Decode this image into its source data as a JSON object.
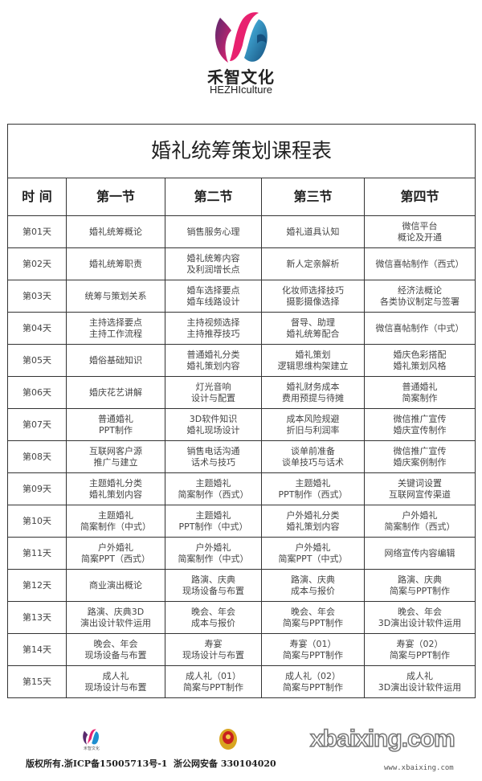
{
  "brand": {
    "name_cn": "禾智文化",
    "name_en": "HEZHIculture"
  },
  "table": {
    "title": "婚礼统筹策划课程表",
    "headers": [
      "时 间",
      "第一节",
      "第二节",
      "第三节",
      "第四节"
    ],
    "rows": [
      {
        "day": "第01天",
        "cells": [
          [
            "婚礼统筹概论"
          ],
          [
            "销售服务心理"
          ],
          [
            "婚礼道具认知"
          ],
          [
            "微信平台",
            "概论及开通"
          ]
        ]
      },
      {
        "day": "第02天",
        "cells": [
          [
            "婚礼统筹职责"
          ],
          [
            "婚礼统筹内容",
            "及利润增长点"
          ],
          [
            "新人定亲解析"
          ],
          [
            "微信喜帖制作（西式）"
          ]
        ]
      },
      {
        "day": "第03天",
        "cells": [
          [
            "统筹与策划关系"
          ],
          [
            "婚车选择要点",
            "婚车线路设计"
          ],
          [
            "化妆师选择技巧",
            "摄影摄像选择"
          ],
          [
            "经济法概论",
            "各类协议制定与签署"
          ]
        ]
      },
      {
        "day": "第04天",
        "cells": [
          [
            "主持选择要点",
            "主持工作流程"
          ],
          [
            "主持视频选择",
            "主持推荐技巧"
          ],
          [
            "督导、助理",
            "婚礼统筹配合"
          ],
          [
            "微信喜帖制作（中式）"
          ]
        ]
      },
      {
        "day": "第05天",
        "cells": [
          [
            "婚俗基础知识"
          ],
          [
            "普通婚礼分类",
            "婚礼策划内容"
          ],
          [
            "婚礼策划",
            "逻辑思维构架建立"
          ],
          [
            "婚庆色彩搭配",
            "婚礼策划风格"
          ]
        ]
      },
      {
        "day": "第06天",
        "cells": [
          [
            "婚庆花艺讲解"
          ],
          [
            "灯光音响",
            "设计与配置"
          ],
          [
            "婚礼财务成本",
            "费用预提与待摊"
          ],
          [
            "普通婚礼",
            "简案制作"
          ]
        ]
      },
      {
        "day": "第07天",
        "cells": [
          [
            "普通婚礼",
            "PPT制作"
          ],
          [
            "3D软件知识",
            "婚礼现场设计"
          ],
          [
            "成本风险规避",
            "折旧与利润率"
          ],
          [
            "微信推广宣传",
            "婚庆宣传制作"
          ]
        ]
      },
      {
        "day": "第08天",
        "cells": [
          [
            "互联网客户源",
            "推广与建立"
          ],
          [
            "销售电话沟通",
            "话术与技巧"
          ],
          [
            "谈单前准备",
            "谈单技巧与话术"
          ],
          [
            "微信推广宣传",
            "婚庆案例制作"
          ]
        ]
      },
      {
        "day": "第09天",
        "cells": [
          [
            "主题婚礼分类",
            "婚礼策划内容"
          ],
          [
            "主题婚礼",
            "简案制作（西式）"
          ],
          [
            "主题婚礼",
            "PPT制作（西式）"
          ],
          [
            "关键词设置",
            "互联网宣传渠道"
          ]
        ]
      },
      {
        "day": "第10天",
        "cells": [
          [
            "主题婚礼",
            "简案制作（中式）"
          ],
          [
            "主题婚礼",
            "PPT制作（中式）"
          ],
          [
            "户外婚礼分类",
            "婚礼策划内容"
          ],
          [
            "户外婚礼",
            "简案制作（西式）"
          ]
        ]
      },
      {
        "day": "第11天",
        "cells": [
          [
            "户外婚礼",
            "简案PPT（西式）"
          ],
          [
            "户外婚礼",
            "简案制作（中式）"
          ],
          [
            "户外婚礼",
            "简案PPT（中式）"
          ],
          [
            "网络宣传内容编辑"
          ]
        ]
      },
      {
        "day": "第12天",
        "cells": [
          [
            "商业演出概论"
          ],
          [
            "路演、庆典",
            "现场设备与布置"
          ],
          [
            "路演、庆典",
            "成本与报价"
          ],
          [
            "路演、庆典",
            "简案与PPT制作"
          ]
        ]
      },
      {
        "day": "第13天",
        "cells": [
          [
            "路演、庆典3D",
            "演出设计软件运用"
          ],
          [
            "晚会、年会",
            "成本与报价"
          ],
          [
            "晚会、年会",
            "简案与PPT制作"
          ],
          [
            "晚会、年会",
            "3D演出设计软件运用"
          ]
        ]
      },
      {
        "day": "第14天",
        "cells": [
          [
            "晚会、年会",
            "现场设备与布置"
          ],
          [
            "寿宴",
            "现场设计与布置"
          ],
          [
            "寿宴（01）",
            "简案与PPT制作"
          ],
          [
            "寿宴（02）",
            "简案与PPT制作"
          ]
        ]
      },
      {
        "day": "第15天",
        "cells": [
          [
            "成人礼",
            "现场设计与布置"
          ],
          [
            "成人礼（01）",
            "简案与PPT制作"
          ],
          [
            "成人礼（02）",
            "简案与PPT制作"
          ],
          [
            "成人礼",
            "3D演出设计软件运用"
          ]
        ]
      }
    ]
  },
  "footer": {
    "logo_text": "禾智文化",
    "icp": "版权所有.浙ICP备15005713号-1",
    "gongan": "浙公网安备 330104020",
    "watermark": "xbaixing.com",
    "watermark_url": "www.xbaixing.com"
  },
  "colors": {
    "logo_pink": "#e8216f",
    "logo_blue": "#1f8fcf",
    "logo_purple": "#5a2a6e",
    "border": "#333333"
  }
}
